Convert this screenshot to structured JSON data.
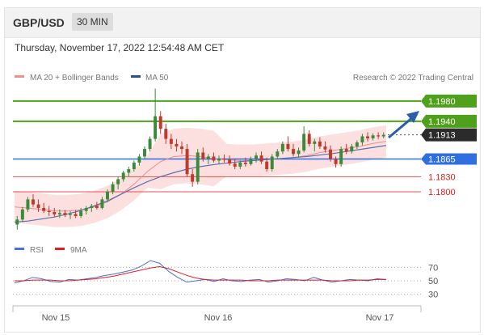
{
  "header": {
    "pair": "GBP/USD",
    "timeframe": "30 MIN"
  },
  "timestamp": "Thursday, November 17, 2022 12:54:48 AM CET",
  "legend": {
    "ma20": "MA 20 + Bollinger Bands",
    "ma50": "MA 50",
    "credit": "Research © 2022 Trading Central"
  },
  "rsi_legend": {
    "rsi": "RSI",
    "ma9": "9MA"
  },
  "colors": {
    "green_level": "#4fa01a",
    "blue_level": "#2f6fe0",
    "red_level": "#e25555",
    "current": "#2b2b2b",
    "arrow": "#2a5fa8",
    "up_candle": "#3a8a3a",
    "down_candle": "#c0392b"
  },
  "chart_data": [
    {
      "type": "candlestick",
      "x_labels": [
        "Nov 15",
        "Nov 16",
        "Nov 17"
      ],
      "price_levels": [
        {
          "label": "1.1980",
          "value": 1.198,
          "kind": "resistance"
        },
        {
          "label": "1.1940",
          "value": 1.194,
          "kind": "resistance"
        },
        {
          "label": "1.1913",
          "value": 1.1913,
          "kind": "current"
        },
        {
          "label": "1.1865",
          "value": 1.1865,
          "kind": "pivot"
        },
        {
          "label": "1.1830",
          "value": 1.183,
          "kind": "support"
        },
        {
          "label": "1.1800",
          "value": 1.18,
          "kind": "support"
        }
      ],
      "ylim": [
        1.1715,
        1.202
      ],
      "candles": [
        [
          1.1735,
          1.1752,
          1.1725,
          1.1745
        ],
        [
          1.1745,
          1.177,
          1.174,
          1.1765
        ],
        [
          1.1765,
          1.179,
          1.176,
          1.1785
        ],
        [
          1.1785,
          1.1795,
          1.177,
          1.1775
        ],
        [
          1.1775,
          1.1785,
          1.176,
          1.1768
        ],
        [
          1.1768,
          1.1778,
          1.1758,
          1.1762
        ],
        [
          1.1762,
          1.1772,
          1.1752,
          1.176
        ],
        [
          1.176,
          1.1768,
          1.175,
          1.1755
        ],
        [
          1.1755,
          1.1765,
          1.1748,
          1.1758
        ],
        [
          1.1758,
          1.1764,
          1.175,
          1.1754
        ],
        [
          1.1754,
          1.1762,
          1.1746,
          1.1756
        ],
        [
          1.1756,
          1.1764,
          1.1748,
          1.1752
        ],
        [
          1.1752,
          1.1768,
          1.1748,
          1.1762
        ],
        [
          1.1762,
          1.1772,
          1.1755,
          1.1768
        ],
        [
          1.1768,
          1.1776,
          1.176,
          1.1772
        ],
        [
          1.1772,
          1.178,
          1.1765,
          1.1768
        ],
        [
          1.1768,
          1.179,
          1.1765,
          1.1785
        ],
        [
          1.1785,
          1.1805,
          1.178,
          1.18
        ],
        [
          1.18,
          1.182,
          1.1795,
          1.1815
        ],
        [
          1.1815,
          1.183,
          1.1805,
          1.1825
        ],
        [
          1.1825,
          1.1842,
          1.182,
          1.1838
        ],
        [
          1.1838,
          1.185,
          1.183,
          1.1845
        ],
        [
          1.1845,
          1.1862,
          1.184,
          1.1858
        ],
        [
          1.1858,
          1.1875,
          1.1852,
          1.187
        ],
        [
          1.187,
          1.189,
          1.1865,
          1.1885
        ],
        [
          1.1885,
          1.191,
          1.188,
          1.1905
        ],
        [
          1.1905,
          1.2005,
          1.19,
          1.195
        ],
        [
          1.195,
          1.196,
          1.1915,
          1.1925
        ],
        [
          1.1925,
          1.1935,
          1.1895,
          1.1905
        ],
        [
          1.1905,
          1.1915,
          1.1885,
          1.1895
        ],
        [
          1.1895,
          1.1905,
          1.188,
          1.189
        ],
        [
          1.189,
          1.19,
          1.1875,
          1.1885
        ],
        [
          1.1885,
          1.1895,
          1.183,
          1.1835
        ],
        [
          1.1835,
          1.1845,
          1.181,
          1.182
        ],
        [
          1.182,
          1.1885,
          1.1815,
          1.1878
        ],
        [
          1.1878,
          1.1888,
          1.186,
          1.1865
        ],
        [
          1.1865,
          1.1875,
          1.1855,
          1.187
        ],
        [
          1.187,
          1.1878,
          1.1858,
          1.1862
        ],
        [
          1.1862,
          1.1872,
          1.1855,
          1.1866
        ],
        [
          1.1866,
          1.1874,
          1.1858,
          1.1864
        ],
        [
          1.1864,
          1.1872,
          1.1852,
          1.1856
        ],
        [
          1.1856,
          1.1866,
          1.1845,
          1.185
        ],
        [
          1.185,
          1.1862,
          1.1845,
          1.1858
        ],
        [
          1.1858,
          1.1868,
          1.185,
          1.1855
        ],
        [
          1.1855,
          1.187,
          1.1852,
          1.1865
        ],
        [
          1.1865,
          1.1878,
          1.1858,
          1.1872
        ],
        [
          1.1872,
          1.188,
          1.1855,
          1.186
        ],
        [
          1.186,
          1.1868,
          1.184,
          1.1845
        ],
        [
          1.1845,
          1.1875,
          1.184,
          1.187
        ],
        [
          1.187,
          1.1885,
          1.1865,
          1.188
        ],
        [
          1.188,
          1.19,
          1.1875,
          1.1895
        ],
        [
          1.1895,
          1.191,
          1.188,
          1.1885
        ],
        [
          1.1885,
          1.1895,
          1.187,
          1.1875
        ],
        [
          1.1875,
          1.1888,
          1.1868,
          1.1882
        ],
        [
          1.1882,
          1.193,
          1.1878,
          1.1915
        ],
        [
          1.1915,
          1.1922,
          1.189,
          1.1895
        ],
        [
          1.1895,
          1.1905,
          1.188,
          1.19
        ],
        [
          1.19,
          1.1908,
          1.1885,
          1.189
        ],
        [
          1.189,
          1.19,
          1.1878,
          1.1884
        ],
        [
          1.1884,
          1.1892,
          1.186,
          1.1865
        ],
        [
          1.1865,
          1.187,
          1.1848,
          1.1855
        ],
        [
          1.1855,
          1.189,
          1.185,
          1.1885
        ],
        [
          1.1885,
          1.1895,
          1.1875,
          1.188
        ],
        [
          1.188,
          1.1895,
          1.1876,
          1.189
        ],
        [
          1.189,
          1.1902,
          1.1885,
          1.1898
        ],
        [
          1.1898,
          1.1915,
          1.1892,
          1.191
        ],
        [
          1.191,
          1.1918,
          1.19,
          1.1906
        ],
        [
          1.1906,
          1.1916,
          1.1902,
          1.1912
        ],
        [
          1.1912,
          1.1918,
          1.1905,
          1.191
        ],
        [
          1.191,
          1.1918,
          1.1906,
          1.1913
        ]
      ],
      "ma20_approx": [
        1.177,
        1.1768,
        1.1765,
        1.1762,
        1.1762,
        1.1764,
        1.177,
        1.178,
        1.1795,
        1.1815,
        1.184,
        1.186,
        1.187,
        1.1872,
        1.187,
        1.1866,
        1.1863,
        1.1862,
        1.1862,
        1.1864,
        1.1866,
        1.1868,
        1.1872,
        1.1878,
        1.1882,
        1.1886,
        1.189,
        1.1896,
        1.19
      ],
      "ma50_approx": [
        1.174,
        1.1742,
        1.1746,
        1.175,
        1.1756,
        1.1763,
        1.1772,
        1.1782,
        1.1795,
        1.1808,
        1.182,
        1.183,
        1.1838,
        1.1845,
        1.185,
        1.1854,
        1.1857,
        1.186,
        1.1862,
        1.1864,
        1.1866,
        1.1868,
        1.187,
        1.1873,
        1.1876,
        1.188,
        1.1884,
        1.1888,
        1.1892
      ]
    },
    {
      "type": "line",
      "title": "RSI",
      "ylim": [
        30,
        70
      ],
      "y_ticks": [
        70,
        50,
        30
      ],
      "series": [
        {
          "name": "RSI",
          "values": [
            47,
            50,
            55,
            53,
            49,
            48,
            52,
            51,
            53,
            55,
            58,
            60,
            63,
            66,
            72,
            80,
            76,
            64,
            55,
            48,
            50,
            52,
            49,
            53,
            50,
            49,
            51,
            52,
            48,
            50,
            53,
            52,
            50,
            55,
            51,
            48,
            50,
            52,
            51,
            50,
            53,
            52
          ]
        },
        {
          "name": "9MA",
          "values": [
            50,
            50,
            51,
            51,
            51,
            50,
            50,
            51,
            52,
            53,
            55,
            57,
            60,
            63,
            66,
            69,
            71,
            68,
            63,
            58,
            54,
            52,
            51,
            51,
            51,
            51,
            50,
            50,
            50,
            51,
            51,
            51,
            51,
            51,
            51,
            50,
            50,
            50,
            51,
            51,
            52,
            52
          ]
        }
      ]
    }
  ]
}
